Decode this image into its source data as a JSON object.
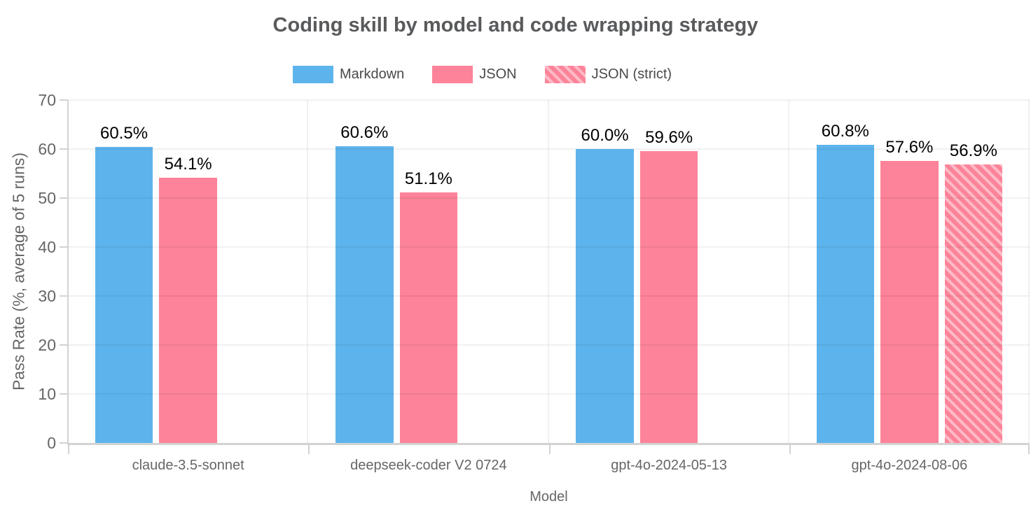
{
  "chart_data": {
    "type": "bar",
    "title": "Coding skill by model and code wrapping strategy",
    "xlabel": "Model",
    "ylabel": "Pass Rate (%, average of 5 runs)",
    "ylim": [
      0,
      70
    ],
    "ytick_step": 10,
    "value_suffix": "%",
    "grid": true,
    "legend_position": "top",
    "categories": [
      "claude-3.5-sonnet",
      "deepseek-coder V2 0724",
      "gpt-4o-2024-05-13",
      "gpt-4o-2024-08-06"
    ],
    "series": [
      {
        "name": "Markdown",
        "color": "#5db4ec",
        "hatch": false,
        "values": [
          60.5,
          60.6,
          60.0,
          60.8
        ]
      },
      {
        "name": "JSON",
        "color": "#fc8399",
        "hatch": false,
        "values": [
          54.1,
          51.1,
          59.6,
          57.6
        ]
      },
      {
        "name": "JSON (strict)",
        "color": "#fc8399",
        "hatch": true,
        "hatch_color": "#fdbac6",
        "values": [
          null,
          null,
          null,
          56.9
        ]
      }
    ]
  },
  "colors": {
    "title_text": "#595a5c",
    "axis_text": "#666666",
    "legend_text": "#4a4a4a",
    "value_label_text": "#000000",
    "axis_line": "#d2d2d2",
    "background": "#ffffff",
    "bar_blue": "#5db4ec",
    "bar_pink": "#fc8399",
    "bar_pink_hatch_stripe": "#fdbac6"
  }
}
